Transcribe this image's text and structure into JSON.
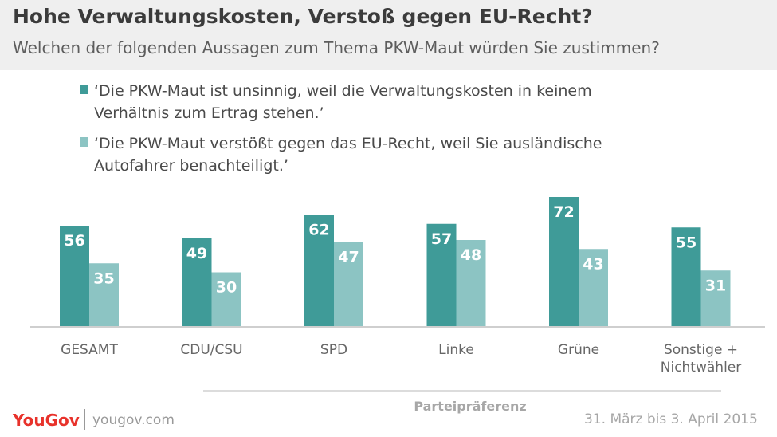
{
  "header": {
    "title": "Hohe Verwaltungskosten, Verstoß gegen EU-Recht?",
    "subtitle": "Welchen der folgenden Aussagen zum Thema PKW-Maut würden Sie zustimmen?"
  },
  "colors": {
    "series1": "#3f9b98",
    "series2": "#8cc4c3",
    "axis": "#cfcfcf",
    "brand": "#e8322b"
  },
  "chart_data": {
    "type": "bar",
    "categories": [
      "GESAMT",
      "CDU/CSU",
      "SPD",
      "Linke",
      "Grüne",
      "Sonstige +\nNichtwähler"
    ],
    "series": [
      {
        "name": "‘Die PKW-Maut ist unsinnig, weil die Verwaltungskosten in keinem\nVerhältnis zum Ertrag stehen.’",
        "values": [
          56,
          49,
          62,
          57,
          72,
          55
        ]
      },
      {
        "name": "‘Die PKW-Maut verstößt gegen das EU-Recht, weil Sie ausländische\nAutofahrer benachteiligt.’",
        "values": [
          35,
          30,
          47,
          48,
          43,
          31
        ]
      }
    ],
    "xlabel": "Parteipräferenz",
    "ylim": [
      0,
      80
    ],
    "grid": false,
    "legend": "top"
  },
  "footer": {
    "logo": "YouGov",
    "site": "yougov.com",
    "date": "31. März bis 3. April 2015"
  }
}
